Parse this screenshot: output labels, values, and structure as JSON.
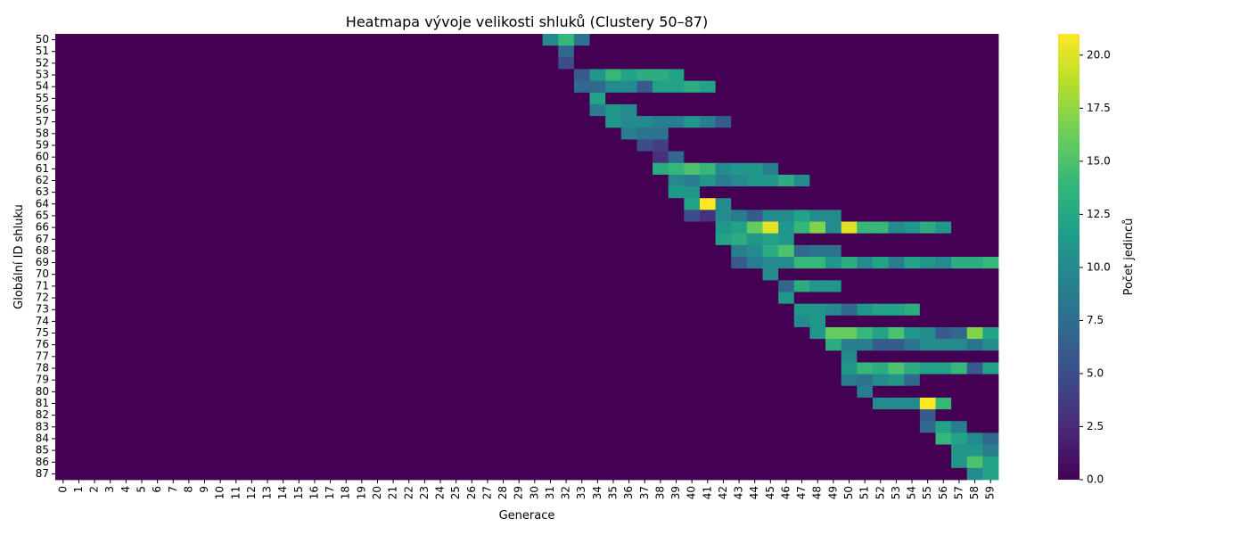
{
  "chart_data": {
    "type": "heatmap",
    "title": "Heatmapa vývoje velikosti shluků (Clustery 50–87)",
    "xlabel": "Generace",
    "ylabel": "Globální ID shluku",
    "colorbar": {
      "label": "Počet jedinců",
      "range": [
        0,
        21
      ],
      "ticks": [
        "0.0",
        "2.5",
        "5.0",
        "7.5",
        "10.0",
        "12.5",
        "15.0",
        "17.5",
        "20.0"
      ],
      "colormap": [
        "#440154",
        "#482878",
        "#3e4989",
        "#31688e",
        "#26828e",
        "#1f9e89",
        "#35b779",
        "#6ece58",
        "#b5de2b",
        "#fde725"
      ]
    },
    "x": [
      "0",
      "1",
      "2",
      "3",
      "4",
      "5",
      "6",
      "7",
      "8",
      "9",
      "10",
      "11",
      "12",
      "13",
      "14",
      "15",
      "16",
      "17",
      "18",
      "19",
      "20",
      "21",
      "22",
      "23",
      "24",
      "25",
      "26",
      "27",
      "28",
      "29",
      "30",
      "31",
      "32",
      "33",
      "34",
      "35",
      "36",
      "37",
      "38",
      "39",
      "40",
      "41",
      "42",
      "43",
      "44",
      "45",
      "46",
      "47",
      "48",
      "49",
      "50",
      "51",
      "52",
      "53",
      "54",
      "55",
      "56",
      "57",
      "58",
      "59"
    ],
    "y": [
      "50",
      "51",
      "52",
      "53",
      "54",
      "55",
      "56",
      "57",
      "58",
      "59",
      "60",
      "61",
      "62",
      "63",
      "64",
      "65",
      "66",
      "67",
      "68",
      "69",
      "70",
      "71",
      "72",
      "73",
      "74",
      "75",
      "76",
      "77",
      "78",
      "79",
      "80",
      "81",
      "82",
      "83",
      "84",
      "85",
      "86",
      "87"
    ],
    "cells": {
      "50": {
        "31": 10,
        "32": 14,
        "33": 8
      },
      "51": {
        "32": 7
      },
      "52": {
        "32": 5
      },
      "53": {
        "33": 6,
        "34": 11,
        "35": 14,
        "36": 12,
        "37": 13,
        "38": 13,
        "39": 12
      },
      "54": {
        "33": 7,
        "34": 7,
        "35": 10,
        "36": 10,
        "37": 6,
        "38": 12,
        "39": 12,
        "40": 13,
        "41": 12
      },
      "55": {
        "34": 12
      },
      "56": {
        "34": 9,
        "35": 11,
        "36": 10
      },
      "57": {
        "35": 11,
        "36": 10,
        "37": 10,
        "38": 9,
        "39": 9,
        "40": 11,
        "41": 9,
        "42": 6
      },
      "58": {
        "36": 9,
        "37": 8,
        "38": 8
      },
      "59": {
        "37": 5,
        "38": 4
      },
      "60": {
        "38": 3,
        "39": 7
      },
      "61": {
        "38": 13,
        "39": 14,
        "40": 15,
        "41": 14,
        "42": 10,
        "43": 11,
        "44": 11,
        "45": 9
      },
      "62": {
        "39": 10,
        "40": 9,
        "41": 11,
        "42": 9,
        "43": 10,
        "44": 11,
        "45": 11,
        "46": 13,
        "47": 10
      },
      "63": {
        "39": 11,
        "40": 11
      },
      "64": {
        "40": 12,
        "41": 21,
        "42": 10
      },
      "65": {
        "40": 5,
        "41": 3,
        "42": 10,
        "43": 9,
        "44": 6,
        "45": 10,
        "46": 10,
        "47": 12,
        "48": 10,
        "49": 10
      },
      "66": {
        "42": 11,
        "43": 12,
        "44": 16,
        "45": 20,
        "46": 11,
        "47": 14,
        "48": 17,
        "49": 10,
        "50": 20,
        "51": 14,
        "52": 14,
        "53": 10,
        "54": 11,
        "55": 13,
        "56": 11
      },
      "67": {
        "42": 12,
        "43": 13,
        "44": 11,
        "45": 12,
        "46": 11
      },
      "68": {
        "43": 9,
        "44": 10,
        "45": 13,
        "46": 15,
        "47": 7,
        "48": 8,
        "49": 8
      },
      "69": {
        "43": 6,
        "44": 9,
        "45": 10,
        "46": 10,
        "47": 14,
        "48": 14,
        "49": 11,
        "50": 13,
        "51": 10,
        "52": 12,
        "53": 9,
        "54": 12,
        "55": 11,
        "56": 10,
        "57": 13,
        "58": 13,
        "59": 14
      },
      "70": {
        "45": 10
      },
      "71": {
        "46": 7,
        "47": 13,
        "48": 11,
        "49": 11
      },
      "72": {
        "46": 11
      },
      "73": {
        "47": 11,
        "48": 11,
        "49": 10,
        "50": 7,
        "51": 11,
        "52": 12,
        "53": 12,
        "54": 13
      },
      "74": {
        "47": 10,
        "48": 11
      },
      "75": {
        "48": 11,
        "49": 16,
        "50": 16,
        "51": 14,
        "52": 12,
        "53": 15,
        "54": 11,
        "55": 10,
        "56": 6,
        "57": 7,
        "58": 17,
        "59": 12
      },
      "76": {
        "49": 13,
        "50": 9,
        "51": 9,
        "52": 6,
        "53": 6,
        "54": 8,
        "55": 10,
        "56": 10,
        "57": 10,
        "58": 8,
        "59": 10
      },
      "77": {
        "50": 10
      },
      "78": {
        "50": 11,
        "51": 14,
        "52": 13,
        "53": 15,
        "54": 13,
        "55": 12,
        "56": 12,
        "57": 14,
        "58": 6,
        "59": 12
      },
      "79": {
        "50": 9,
        "51": 8,
        "52": 10,
        "53": 11,
        "54": 7
      },
      "80": {
        "51": 9
      },
      "81": {
        "52": 10,
        "53": 10,
        "54": 10,
        "55": 21,
        "56": 14
      },
      "82": {
        "55": 6
      },
      "83": {
        "55": 7,
        "56": 12,
        "57": 9
      },
      "84": {
        "56": 14,
        "57": 12,
        "58": 10,
        "59": 7
      },
      "85": {
        "57": 11,
        "58": 11,
        "59": 9
      },
      "86": {
        "57": 11,
        "58": 15,
        "59": 12
      },
      "87": {
        "58": 10,
        "59": 12
      }
    },
    "grid": false,
    "legend": "colorbar-right"
  }
}
